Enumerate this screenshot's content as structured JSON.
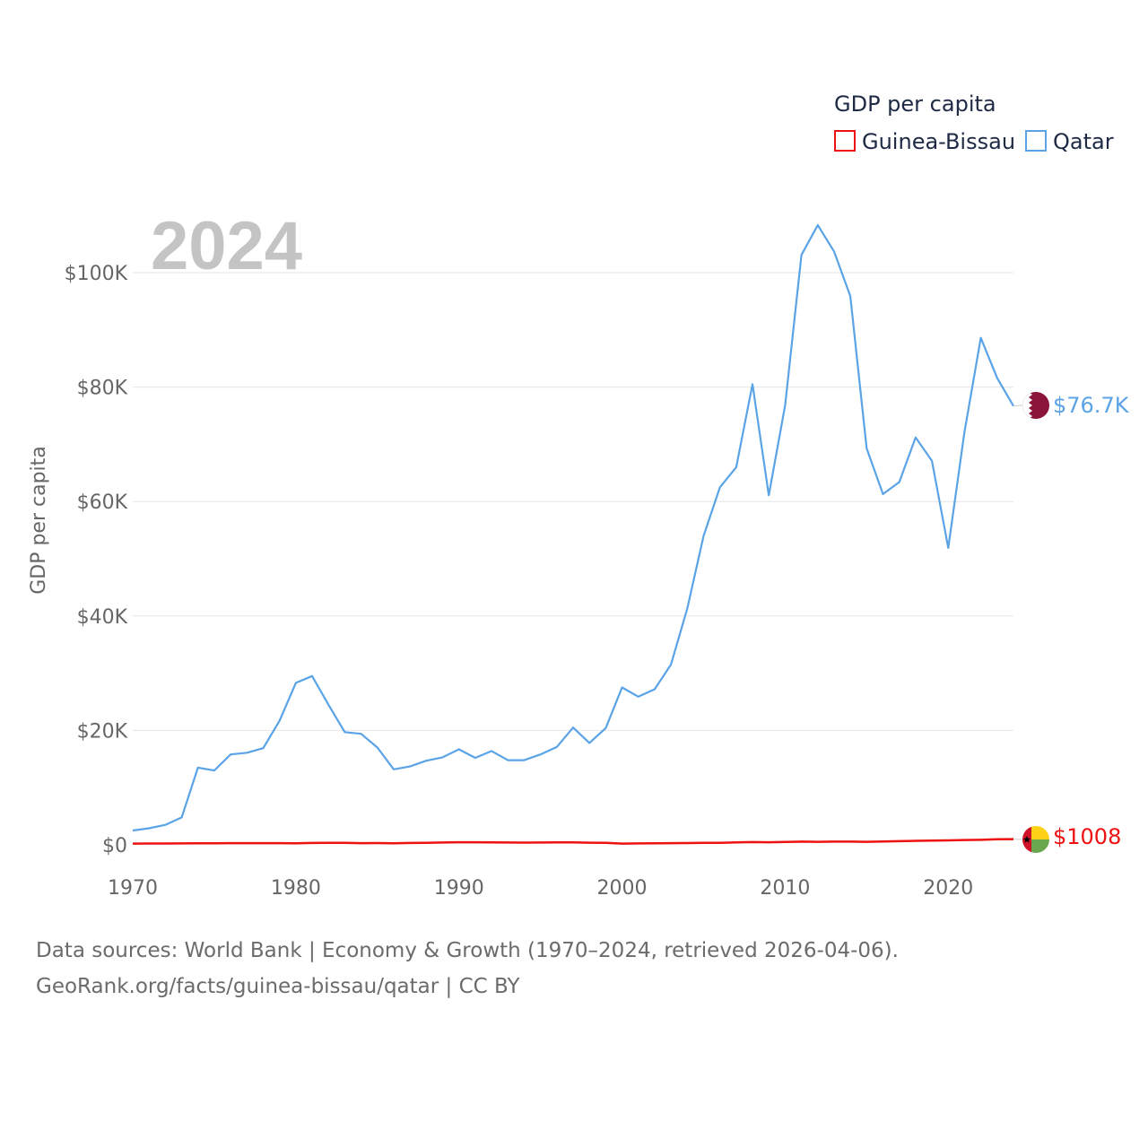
{
  "chart_data": {
    "type": "line",
    "title": "GDP per capita",
    "ylabel": "GDP per capita",
    "xlabel": "",
    "current_year": "2024",
    "xlim": [
      1970,
      2024
    ],
    "ylim": [
      0,
      110000
    ],
    "y_ticks": [
      0,
      20000,
      40000,
      60000,
      80000,
      100000
    ],
    "y_tick_labels": [
      "$0",
      "$20K",
      "$40K",
      "$60K",
      "$80K",
      "$100K"
    ],
    "x_ticks": [
      1970,
      1980,
      1990,
      2000,
      2010,
      2020
    ],
    "x_tick_labels": [
      "1970",
      "1980",
      "1990",
      "2000",
      "2010",
      "2020"
    ],
    "grid": true,
    "legend_position": "top-right",
    "x": [
      1970,
      1971,
      1972,
      1973,
      1974,
      1975,
      1976,
      1977,
      1978,
      1979,
      1980,
      1981,
      1982,
      1983,
      1984,
      1985,
      1986,
      1987,
      1988,
      1989,
      1990,
      1991,
      1992,
      1993,
      1994,
      1995,
      1996,
      1997,
      1998,
      1999,
      2000,
      2001,
      2002,
      2003,
      2004,
      2005,
      2006,
      2007,
      2008,
      2009,
      2010,
      2011,
      2012,
      2013,
      2014,
      2015,
      2016,
      2017,
      2018,
      2019,
      2020,
      2021,
      2022,
      2023,
      2024
    ],
    "series": [
      {
        "name": "Guinea-Bissau",
        "color": "#ee1111",
        "end_label": "$1008",
        "values": [
          220,
          230,
          240,
          250,
          270,
          280,
          290,
          290,
          300,
          290,
          270,
          330,
          350,
          340,
          300,
          310,
          280,
          330,
          350,
          400,
          450,
          460,
          420,
          410,
          390,
          400,
          430,
          420,
          370,
          360,
          220,
          250,
          280,
          300,
          320,
          340,
          350,
          420,
          480,
          450,
          520,
          560,
          530,
          560,
          570,
          540,
          580,
          640,
          710,
          730,
          780,
          850,
          880,
          970,
          1008
        ]
      },
      {
        "name": "Qatar",
        "color": "#5aa3e6",
        "end_label": "$76.7K",
        "values": [
          2500,
          2900,
          3500,
          4800,
          13500,
          13000,
          15800,
          16100,
          16900,
          21700,
          28300,
          29500,
          24500,
          19700,
          19400,
          17000,
          13200,
          13700,
          14700,
          15300,
          16700,
          15200,
          16400,
          14800,
          14800,
          15800,
          17100,
          20500,
          17800,
          20400,
          27500,
          25900,
          27200,
          31500,
          41300,
          54000,
          62500,
          66000,
          80500,
          61100,
          76800,
          103100,
          108300,
          103700,
          95900,
          69300,
          61300,
          63400,
          71200,
          67100,
          51900,
          72200,
          88600,
          81600,
          76700
        ]
      }
    ]
  },
  "footer": {
    "source_line": "Data sources: World Bank | Economy & Growth (1970–2024, retrieved 2026-04-06).",
    "url_line": "GeoRank.org/facts/guinea-bissau/qatar | CC BY"
  },
  "flags": {
    "qatar": {
      "maroon": "#8a1538",
      "white": "#ffffff"
    },
    "guinea_bissau": {
      "red": "#ce1126",
      "yellow": "#fcd116",
      "green": "#6aa84f",
      "star": "#000000"
    }
  }
}
